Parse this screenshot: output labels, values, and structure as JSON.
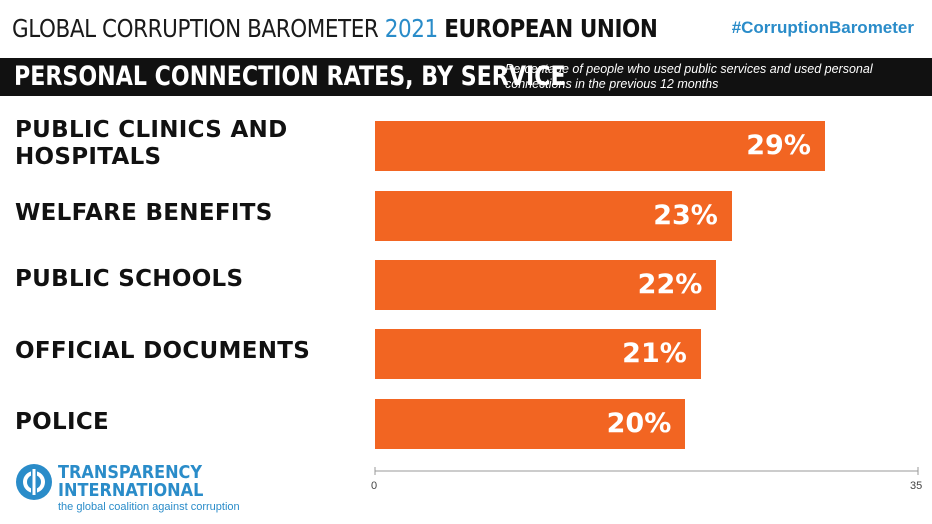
{
  "header": {
    "title_prefix": "GLOBAL CORRUPTION BAROMETER",
    "title_year": "2021",
    "title_region": "EUROPEAN UNION",
    "hashtag": "#CorruptionBarometer"
  },
  "band": {
    "title": "PERSONAL CONNECTION RATES, BY SERVICE",
    "subtitle": "Percentage of people who used public services and used personal connections in the previous 12 months"
  },
  "chart_data": {
    "type": "bar",
    "orientation": "horizontal",
    "categories": [
      "PUBLIC CLINICS AND HOSPITALS",
      "WELFARE BENEFITS",
      "PUBLIC SCHOOLS",
      "OFFICIAL DOCUMENTS",
      "POLICE"
    ],
    "values": [
      29,
      23,
      22,
      21,
      20
    ],
    "value_labels": [
      "29%",
      "23%",
      "22%",
      "21%",
      "20%"
    ],
    "xlim": [
      0,
      35
    ],
    "x_ticks": [
      "0",
      "35"
    ],
    "bar_color": "#f26522",
    "grid": false
  },
  "logo": {
    "line1": "TRANSPARENCY",
    "line2": "INTERNATIONAL",
    "tagline": "the global coalition against corruption",
    "color": "#2a8cc9"
  }
}
